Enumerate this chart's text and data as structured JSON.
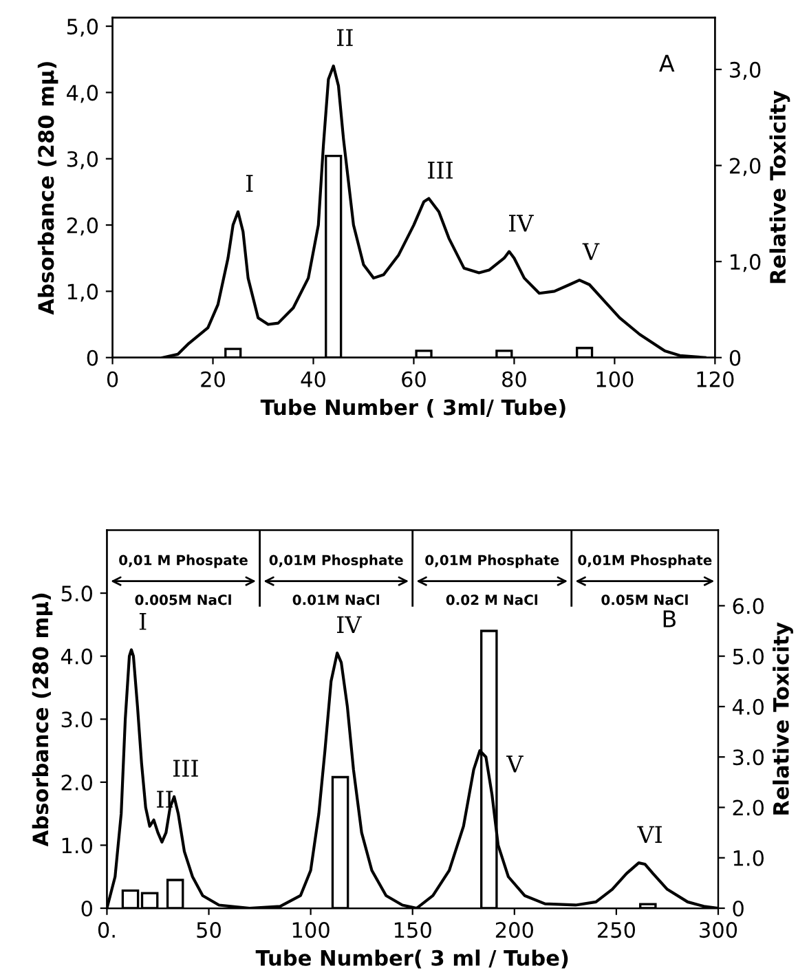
{
  "chart_data": [
    {
      "type": "line",
      "title": "A",
      "xlabel": "Tube Number ( 3ml/ Tube)",
      "ylabel": "Absorbance (280 mμ)",
      "y2label": "Relative Toxicity",
      "xlim": [
        0,
        120
      ],
      "xticks": [
        0,
        20,
        40,
        60,
        80,
        100,
        120
      ],
      "ylim": [
        0,
        5.13
      ],
      "yticks": [
        0,
        {
          "value": 1,
          "label": "1,0"
        },
        {
          "value": 2,
          "label": "2,0"
        },
        {
          "value": 3,
          "label": "3,0"
        },
        {
          "value": 4,
          "label": "4,0"
        },
        {
          "value": 5,
          "label": "5,0"
        }
      ],
      "y2lim": [
        0,
        3.54
      ],
      "y2ticks": [
        0,
        {
          "value": 1,
          "label": "1,0"
        },
        {
          "value": 2,
          "label": "2,0"
        },
        {
          "value": 3,
          "label": "3,0"
        }
      ],
      "grid": false,
      "legend": false,
      "series": [
        {
          "color": "#000000",
          "x": [
            10,
            13,
            15,
            19,
            21,
            23,
            24,
            25,
            26,
            27,
            29,
            31,
            33,
            36,
            39,
            41,
            42,
            43,
            44,
            45,
            46,
            48,
            50,
            52,
            54,
            57,
            60,
            62,
            63,
            65,
            67,
            70,
            73,
            75,
            78,
            79,
            80,
            82,
            85,
            88,
            91,
            93,
            95,
            98,
            101,
            105,
            110,
            113,
            118
          ],
          "values": [
            0.0,
            0.05,
            0.2,
            0.45,
            0.8,
            1.5,
            2.0,
            2.2,
            1.9,
            1.2,
            0.6,
            0.5,
            0.52,
            0.75,
            1.2,
            2.0,
            3.2,
            4.2,
            4.4,
            4.1,
            3.3,
            2.0,
            1.4,
            1.2,
            1.25,
            1.55,
            2.0,
            2.35,
            2.4,
            2.2,
            1.8,
            1.35,
            1.28,
            1.32,
            1.5,
            1.6,
            1.5,
            1.2,
            0.97,
            1.0,
            1.1,
            1.17,
            1.1,
            0.85,
            0.6,
            0.35,
            0.1,
            0.03,
            0.0
          ]
        },
        {
          "type": "bar",
          "axis": "y2",
          "color": "#ffffff",
          "x": [
            24,
            44,
            62,
            78,
            94
          ],
          "values": [
            0.09,
            2.1,
            0.07,
            0.07,
            0.1
          ]
        }
      ],
      "annotations": [
        {
          "text": "I",
          "x": 25,
          "y": 2.2
        },
        {
          "text": "II",
          "x": 44,
          "y": 4.4
        },
        {
          "text": "III",
          "x": 63,
          "y": 2.4
        },
        {
          "text": "IV",
          "x": 79,
          "y": 1.6
        },
        {
          "text": "V",
          "x": 93,
          "y": 1.17
        }
      ]
    },
    {
      "type": "line",
      "title": "B",
      "xlabel": "Tube Number( 3 ml / Tube)",
      "ylabel": "Absorbance (280 mμ)",
      "y2label": "Relative Toxicity",
      "xlim": [
        0,
        300
      ],
      "xticks": [
        {
          "value": 0,
          "label": "0."
        },
        50,
        100,
        150,
        200,
        250,
        300
      ],
      "ylim": [
        0,
        6.0
      ],
      "yticks": [
        0,
        {
          "value": 1,
          "label": "1.0"
        },
        {
          "value": 2,
          "label": "2.0"
        },
        {
          "value": 3,
          "label": "3.0"
        },
        {
          "value": 4,
          "label": "4.0"
        },
        {
          "value": 5,
          "label": "5.0"
        }
      ],
      "y2lim": [
        0,
        7.5
      ],
      "y2ticks": [
        0,
        {
          "value": 1,
          "label": "1.0"
        },
        {
          "value": 2,
          "label": "2.0"
        },
        {
          "value": 3,
          "label": "3.0"
        },
        {
          "value": 4,
          "label": "4.0"
        },
        {
          "value": 5,
          "label": "5.0"
        },
        {
          "value": 6,
          "label": "6.0"
        }
      ],
      "grid": false,
      "legend": false,
      "series": [
        {
          "color": "#000000",
          "x": [
            0,
            4,
            7,
            9,
            11,
            12,
            13,
            15,
            17,
            19,
            21,
            23,
            25,
            27,
            29,
            31,
            33,
            35,
            38,
            42,
            47,
            55,
            70,
            85,
            95,
            100,
            104,
            107,
            110,
            113,
            115,
            118,
            121,
            125,
            130,
            137,
            145,
            152,
            160,
            168,
            175,
            180,
            183,
            186,
            189,
            192,
            197,
            205,
            215,
            230,
            240,
            248,
            255,
            261,
            264,
            268,
            275,
            285,
            293,
            300
          ],
          "values": [
            0,
            0.5,
            1.5,
            3.0,
            4.0,
            4.1,
            4.0,
            3.2,
            2.3,
            1.6,
            1.3,
            1.4,
            1.2,
            1.05,
            1.2,
            1.6,
            1.77,
            1.5,
            0.9,
            0.5,
            0.2,
            0.05,
            0.0,
            0.03,
            0.2,
            0.6,
            1.5,
            2.5,
            3.6,
            4.05,
            3.9,
            3.2,
            2.2,
            1.2,
            0.6,
            0.2,
            0.05,
            0.0,
            0.2,
            0.6,
            1.3,
            2.2,
            2.5,
            2.4,
            1.8,
            1.0,
            0.5,
            0.2,
            0.07,
            0.05,
            0.1,
            0.3,
            0.55,
            0.72,
            0.7,
            0.55,
            0.3,
            0.1,
            0.03,
            0.0
          ]
        },
        {
          "type": "bar",
          "axis": "y2",
          "color": "#ffffff",
          "x": [
            11.5,
            21,
            33.5,
            114.5,
            187.5,
            265.5
          ],
          "values": [
            0.35,
            0.3,
            0.56,
            2.6,
            5.5,
            0.08
          ]
        }
      ],
      "ref_lines": [
        {
          "axis": "x",
          "value": 75
        },
        {
          "axis": "x",
          "value": 150
        },
        {
          "axis": "x",
          "value": 228
        }
      ],
      "annotations": [
        "0,01 M Phospate\n0.005M NaCl",
        "0,01M Phosphate\n0.01M NaCl",
        "0,01M Phosphate\n0.02 M NaCl",
        "0,01M Phosphate\n0.05M NaCl",
        {
          "text": "I",
          "x": 12,
          "y": 4.1
        },
        {
          "text": "II",
          "x": 23,
          "y": 1.4
        },
        {
          "text": "III",
          "x": 33,
          "y": 1.77
        },
        {
          "text": "IV",
          "x": 113,
          "y": 4.05
        },
        {
          "text": "V",
          "x": 183,
          "y": 2.5
        },
        {
          "text": "VI",
          "x": 261,
          "y": 0.72
        }
      ]
    }
  ]
}
